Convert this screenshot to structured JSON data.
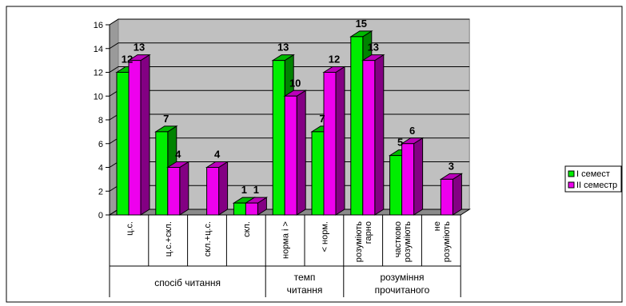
{
  "chart_data": {
    "type": "bar",
    "style": "3d-clustered-column",
    "ylim": [
      0,
      16
    ],
    "y_ticks": [
      "0",
      "2",
      "4",
      "6",
      "8",
      "10",
      "12",
      "14",
      "16"
    ],
    "grid": true,
    "legend_position": "right",
    "categories": [
      [
        "ц.с."
      ],
      [
        "ц.с.+скл."
      ],
      [
        "скл.+ц.с."
      ],
      [
        "скл."
      ],
      [
        "норма і >"
      ],
      [
        "< норм."
      ],
      [
        "розуміють",
        "гарно"
      ],
      [
        "частково",
        "розуміють"
      ],
      [
        "не",
        "розуміють"
      ]
    ],
    "groups": [
      {
        "label": [
          "спосіб читання"
        ],
        "span": [
          0,
          3
        ]
      },
      {
        "label": [
          "темп",
          "читання"
        ],
        "span": [
          4,
          5
        ]
      },
      {
        "label": [
          "розуміння",
          "прочитаного"
        ],
        "span": [
          6,
          8
        ]
      }
    ],
    "series": [
      {
        "name": "І семест",
        "color": "#00ee00",
        "values": [
          12,
          7,
          null,
          1,
          13,
          7,
          15,
          5,
          null
        ]
      },
      {
        "name": "ІІ семестр",
        "color": "#ee00ee",
        "values": [
          13,
          4,
          4,
          1,
          10,
          12,
          13,
          6,
          3
        ]
      }
    ],
    "data_labels": [
      [
        "12",
        "7",
        "",
        "1",
        "13",
        "7",
        "15",
        "5",
        ""
      ],
      [
        "13",
        "4",
        "4",
        "1",
        "10",
        "12",
        "13",
        "6",
        "3"
      ]
    ]
  }
}
